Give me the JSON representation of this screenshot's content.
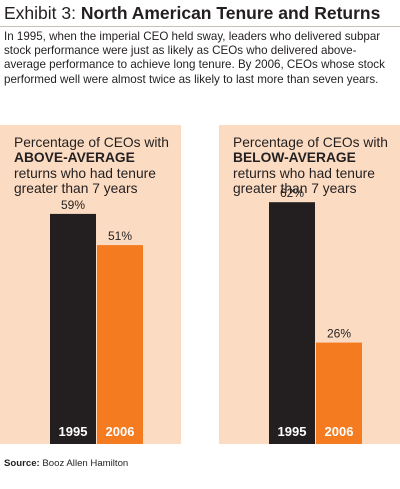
{
  "header": {
    "prefix": "Exhibit 3:",
    "title": "North American Tenure and Returns"
  },
  "intro": "In 1995, when the imperial CEO held sway, leaders who delivered subpar stock performance were just as likely as CEOs who delivered above-average performance to achieve long tenure. By 2006, CEOs whose stock performed well were almost twice as likely to last more than seven years.",
  "source": {
    "label": "Source:",
    "text": "Booz Allen Hamilton"
  },
  "colors": {
    "panel_bg": "#fbdcc2",
    "bar_1995": "#231f20",
    "bar_2006": "#f47b20",
    "bar_label": "#ffffff"
  },
  "chart_data": [
    {
      "type": "bar",
      "title_parts": [
        "Percentage of CEOs with",
        "ABOVE-AVERAGE",
        "returns who had tenure greater than 7 years"
      ],
      "categories": [
        "1995",
        "2006"
      ],
      "values": [
        59,
        51
      ],
      "value_labels": [
        "59%",
        "51%"
      ],
      "ylim": [
        0,
        100
      ],
      "grid": false,
      "legend": "none"
    },
    {
      "type": "bar",
      "title_parts": [
        "Percentage of CEOs with",
        "BELOW-AVERAGE",
        "returns who had tenure greater than 7 years"
      ],
      "categories": [
        "1995",
        "2006"
      ],
      "values": [
        62,
        26
      ],
      "value_labels": [
        "62%",
        "26%"
      ],
      "ylim": [
        0,
        100
      ],
      "grid": false,
      "legend": "none"
    }
  ]
}
